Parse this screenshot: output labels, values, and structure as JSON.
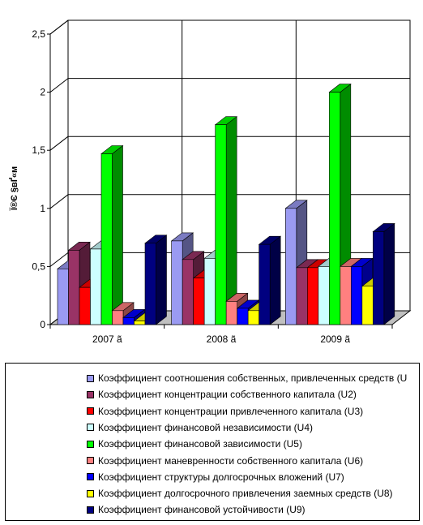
{
  "chart_data": {
    "type": "bar",
    "title": "",
    "xlabel": "",
    "ylabel": "Ї®Є §вҐ«м",
    "ylim": [
      0,
      2.5
    ],
    "yticks": [
      "0",
      "0,5",
      "1",
      "1,5",
      "2",
      "2,5"
    ],
    "grid": true,
    "legend_position": "bottom",
    "categories": [
      "2007 ã",
      "2008 ã",
      "2009 ã"
    ],
    "series": [
      {
        "name": "Коэффициент соотношения собственных, привлеченных средств (U",
        "color": "#9a9af2",
        "values": [
          0.48,
          0.72,
          1.0
        ]
      },
      {
        "name": "Коэффициент концентрации собственного капитала (U2)",
        "color": "#993366",
        "values": [
          0.64,
          0.56,
          0.49
        ]
      },
      {
        "name": "Коэффициент концентрации привлеченного капитала (U3)",
        "color": "#ff0000",
        "values": [
          0.32,
          0.4,
          0.49
        ]
      },
      {
        "name": "Коэффициент финансовой независимости (U4)",
        "color": "#ccffff",
        "values": [
          0.65,
          0.57,
          0.5
        ]
      },
      {
        "name": "Коэффициент финансовой зависимости (U5)",
        "color": "#00ff00",
        "values": [
          1.47,
          1.72,
          2.0
        ]
      },
      {
        "name": "Коэффициент маневренности собственного капитала (U6)",
        "color": "#ff8080",
        "values": [
          0.12,
          0.2,
          0.5
        ]
      },
      {
        "name": "Коэффициент структуры долгосрочных вложений (U7)",
        "color": "#0000ff",
        "values": [
          0.06,
          0.14,
          0.5
        ]
      },
      {
        "name": "Коэффициент долгосрочного привлечения заемных средств (U8)",
        "color": "#ffff00",
        "values": [
          0.03,
          0.12,
          0.33
        ]
      },
      {
        "name": "Коэффициент финансовой устойчивости (U9)",
        "color": "#000080",
        "values": [
          0.7,
          0.69,
          0.8
        ]
      }
    ]
  }
}
